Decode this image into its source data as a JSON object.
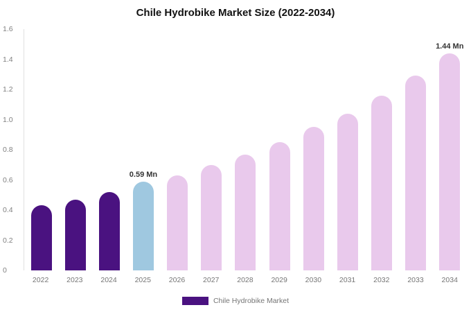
{
  "title": "Chile Hydrobike Market Size (2022-2034)",
  "legend": {
    "label": "Chile Hydrobike Market",
    "swatch_color": "#4a1280"
  },
  "colors": {
    "historical_bar": "#4a1280",
    "current_year_bar": "#9fc8e0",
    "forecast_bar": "#e9c9ec",
    "background": "#ffffff",
    "title_text": "#111111",
    "axis_text": "#808080"
  },
  "chart_data": {
    "type": "bar",
    "title": "Chile Hydrobike Market Size (2022-2034)",
    "categories": [
      "2022",
      "2023",
      "2024",
      "2025",
      "2026",
      "2027",
      "2028",
      "2029",
      "2030",
      "2031",
      "2032",
      "2033",
      "2034"
    ],
    "values": [
      0.43,
      0.47,
      0.52,
      0.59,
      0.63,
      0.7,
      0.77,
      0.85,
      0.95,
      1.04,
      1.16,
      1.29,
      1.44
    ],
    "bar_colors": [
      "#4a1280",
      "#4a1280",
      "#4a1280",
      "#9fc8e0",
      "#e9c9ec",
      "#e9c9ec",
      "#e9c9ec",
      "#e9c9ec",
      "#e9c9ec",
      "#e9c9ec",
      "#e9c9ec",
      "#e9c9ec",
      "#e9c9ec"
    ],
    "annotations": [
      {
        "category": "2025",
        "text": "0.59 Mn"
      },
      {
        "category": "2034",
        "text": "1.44 Mn"
      }
    ],
    "xlabel": "",
    "ylabel": "",
    "ylim": [
      0,
      1.6
    ],
    "yticks": [
      "0",
      "0.2",
      "0.4",
      "0.6",
      "0.8",
      "1.0",
      "1.2",
      "1.4",
      "1.6"
    ],
    "grid": false,
    "legend_position": "bottom",
    "legend_entries": [
      "Chile Hydrobike Market"
    ],
    "unit": "Mn"
  }
}
